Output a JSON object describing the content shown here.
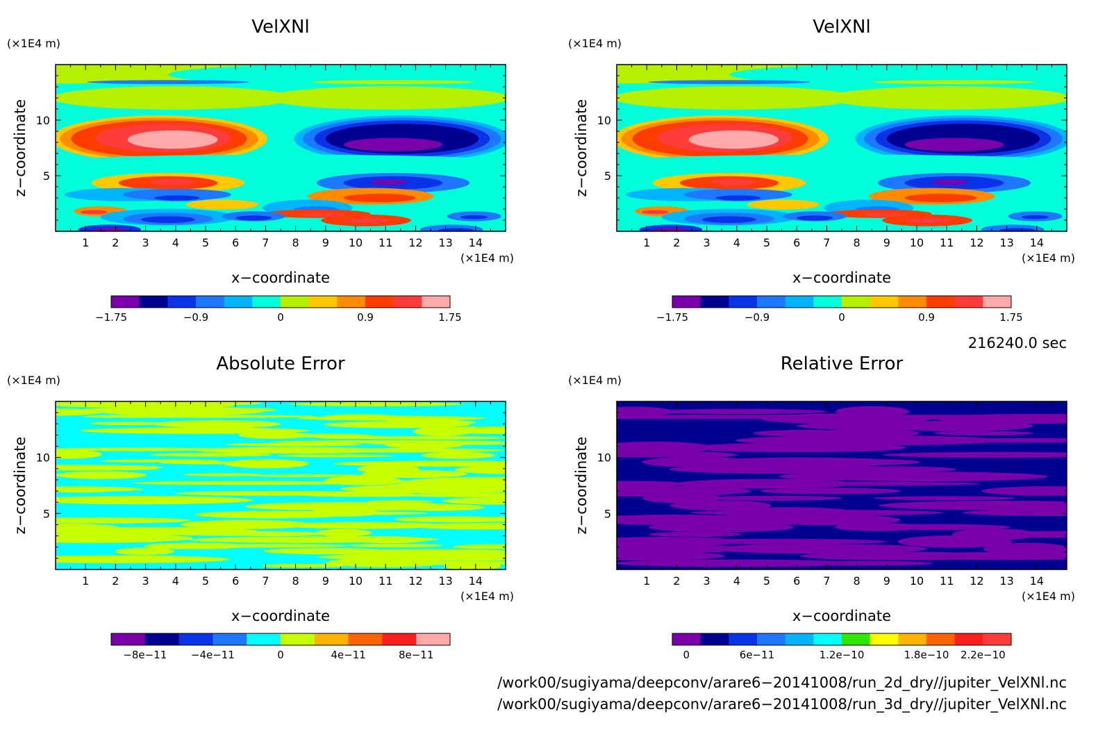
{
  "chart_data": [
    {
      "type": "heatmap",
      "title": "VelXNl",
      "xlabel": "x−coordinate",
      "ylabel": "z−coordinate",
      "x_unit": "(×1E4 m)",
      "y_unit": "(×1E4 m)",
      "xlim": [
        0,
        15
      ],
      "ylim": [
        0,
        15
      ],
      "x_ticks": [
        1,
        2,
        3,
        4,
        5,
        6,
        7,
        8,
        9,
        10,
        11,
        12,
        13,
        14
      ],
      "y_ticks": [
        5,
        10
      ],
      "pattern": "velocity",
      "colorbar": {
        "colors": [
          "#7a00aa",
          "#000090",
          "#0a32e6",
          "#1e78ff",
          "#00b4ff",
          "#00ffd8",
          "#b4f000",
          "#ffc800",
          "#ff8c00",
          "#ff3c00",
          "#ff3c3c",
          "#ffaaaa"
        ],
        "tick_labels": [
          "−1.75",
          "−0.9",
          "0",
          "0.9",
          "1.75"
        ]
      }
    },
    {
      "type": "heatmap",
      "title": "VelXNl",
      "xlabel": "x−coordinate",
      "ylabel": "z−coordinate",
      "x_unit": "(×1E4 m)",
      "y_unit": "(×1E4 m)",
      "xlim": [
        0,
        15
      ],
      "ylim": [
        0,
        15
      ],
      "x_ticks": [
        1,
        2,
        3,
        4,
        5,
        6,
        7,
        8,
        9,
        10,
        11,
        12,
        13,
        14
      ],
      "y_ticks": [
        5,
        10
      ],
      "pattern": "velocity",
      "colorbar": {
        "colors": [
          "#7a00aa",
          "#000090",
          "#0a32e6",
          "#1e78ff",
          "#00b4ff",
          "#00ffd8",
          "#b4f000",
          "#ffc800",
          "#ff8c00",
          "#ff3c00",
          "#ff3c3c",
          "#ffaaaa"
        ],
        "tick_labels": [
          "−1.75",
          "−0.9",
          "0",
          "0.9",
          "1.75"
        ]
      }
    },
    {
      "type": "heatmap",
      "title": "Absolute Error",
      "xlabel": "x−coordinate",
      "ylabel": "z−coordinate",
      "x_unit": "(×1E4 m)",
      "y_unit": "(×1E4 m)",
      "xlim": [
        0,
        15
      ],
      "ylim": [
        0,
        15
      ],
      "x_ticks": [
        1,
        2,
        3,
        4,
        5,
        6,
        7,
        8,
        9,
        10,
        11,
        12,
        13,
        14
      ],
      "y_ticks": [
        5,
        10
      ],
      "pattern": "abs",
      "colorbar": {
        "colors": [
          "#7a00aa",
          "#000090",
          "#0a32e6",
          "#1e78ff",
          "#00ffff",
          "#c8ff00",
          "#ffb400",
          "#ff6400",
          "#ff1e1e",
          "#ffaaaa"
        ],
        "tick_labels": [
          "−8e−11",
          "−4e−11",
          "0",
          "4e−11",
          "8e−11"
        ]
      }
    },
    {
      "type": "heatmap",
      "title": "Relative Error",
      "xlabel": "x−coordinate",
      "ylabel": "z−coordinate",
      "x_unit": "(×1E4 m)",
      "y_unit": "(×1E4 m)",
      "xlim": [
        0,
        15
      ],
      "ylim": [
        0,
        15
      ],
      "x_ticks": [
        1,
        2,
        3,
        4,
        5,
        6,
        7,
        8,
        9,
        10,
        11,
        12,
        13,
        14
      ],
      "y_ticks": [
        5,
        10
      ],
      "pattern": "rel",
      "colorbar": {
        "colors": [
          "#7a00aa",
          "#000090",
          "#0a32e6",
          "#1e78ff",
          "#00b4ff",
          "#00ffff",
          "#32e600",
          "#ffff00",
          "#ffb400",
          "#ff6400",
          "#ff1e1e",
          "#ff3c3c"
        ],
        "tick_labels": [
          "0",
          "6e−11",
          "1.2e−10",
          "1.8e−10",
          "2.2e−10"
        ]
      }
    }
  ],
  "time_label": "216240.0 sec",
  "file_paths": [
    "/work00/sugiyama/deepconv/arare6−20141008/run_2d_dry//jupiter_VelXNl.nc",
    "/work00/sugiyama/deepconv/arare6−20141008/run_3d_dry//jupiter_VelXNl.nc"
  ]
}
